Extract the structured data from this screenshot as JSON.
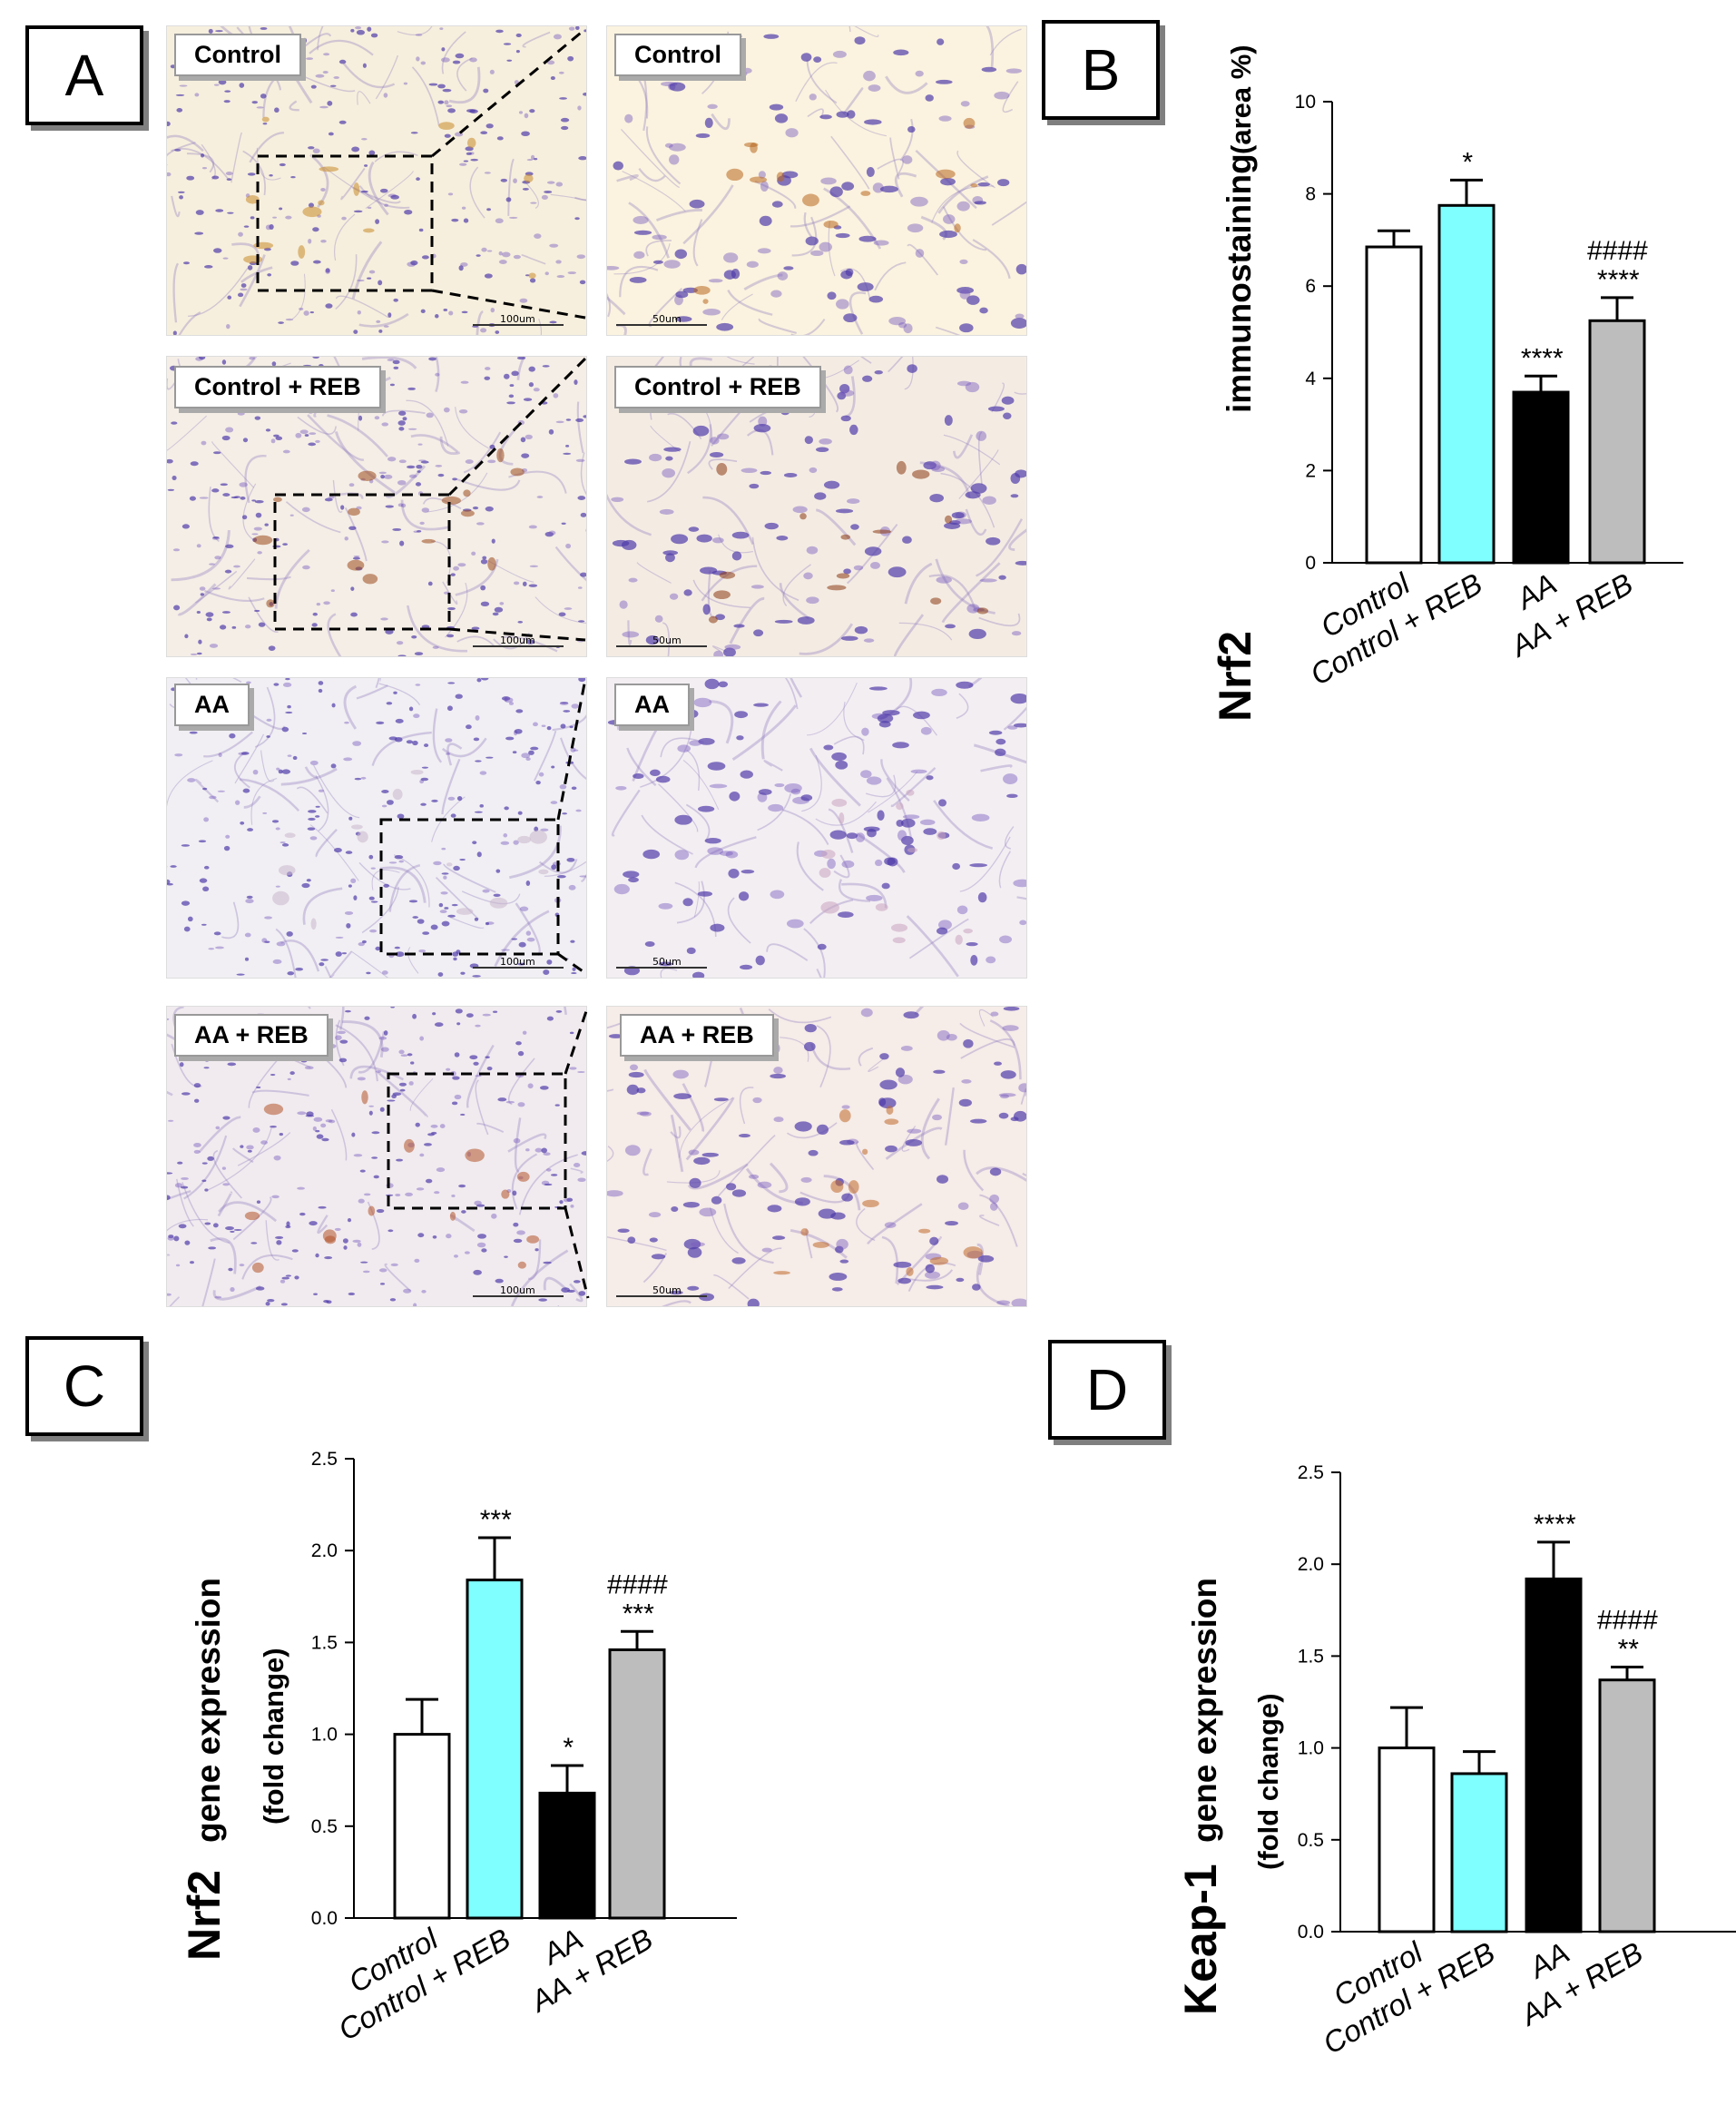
{
  "panels": {
    "a": "A",
    "b": "B",
    "c": "C",
    "d": "D"
  },
  "micrographs": [
    {
      "label": "Control",
      "scale": "100um",
      "tone": "#f6efdd",
      "stain": "#c98a2a"
    },
    {
      "label": "Control",
      "scale": "50um",
      "tone": "#fbf3df",
      "stain": "#b8661d"
    },
    {
      "label": "Control + REB",
      "scale": "100um",
      "tone": "#f4eee6",
      "stain": "#9c4a1c"
    },
    {
      "label": "Control + REB",
      "scale": "50um",
      "tone": "#f4ece3",
      "stain": "#8a3a14"
    },
    {
      "label": "AA",
      "scale": "100um",
      "tone": "#f1eff3",
      "stain": "#c8b6cc"
    },
    {
      "label": "AA",
      "scale": "50um",
      "tone": "#f3eef2",
      "stain": "#c8a4c0"
    },
    {
      "label": "AA + REB",
      "scale": "100um",
      "tone": "#f1ebef",
      "stain": "#b2532a"
    },
    {
      "label": "AA + REB",
      "scale": "50um",
      "tone": "#f6ece8",
      "stain": "#c06a2a"
    }
  ],
  "chart_data": [
    {
      "id": "B",
      "type": "bar",
      "categories": [
        "Control",
        "Control + REB",
        "AA",
        "AA + REB"
      ],
      "values": [
        6.85,
        7.75,
        3.7,
        5.25
      ],
      "errors": [
        0.35,
        0.55,
        0.35,
        0.5
      ],
      "annotations": [
        [],
        [
          "*"
        ],
        [
          "****"
        ],
        [
          "####",
          "****"
        ]
      ],
      "colors": [
        "#ffffff",
        "#7fffff",
        "#000000",
        "#bdbdbd"
      ],
      "ylabel_bold": "Nrf2",
      "ylabel_rest": "immunostaining",
      "ylabel_unit": "(area %)",
      "ylim": [
        0,
        10
      ],
      "yticks": [
        "0",
        "2",
        "4",
        "6",
        "8",
        "10"
      ],
      "ytick_values": [
        0,
        2,
        4,
        6,
        8,
        10
      ]
    },
    {
      "id": "C",
      "type": "bar",
      "categories": [
        "Control",
        "Control + REB",
        "AA",
        "AA + REB"
      ],
      "values": [
        1.0,
        1.84,
        0.68,
        1.46
      ],
      "errors": [
        0.19,
        0.23,
        0.15,
        0.1
      ],
      "annotations": [
        [],
        [
          "***"
        ],
        [
          "*"
        ],
        [
          "####",
          "***"
        ]
      ],
      "colors": [
        "#ffffff",
        "#7fffff",
        "#000000",
        "#bdbdbd"
      ],
      "ylabel_bold": "Nrf2",
      "ylabel_rest": "gene expression",
      "ylabel_unit": "(fold change)",
      "ylim": [
        0,
        2.5
      ],
      "yticks": [
        "0.0",
        "0.5",
        "1.0",
        "1.5",
        "2.0",
        "2.5"
      ],
      "ytick_values": [
        0,
        0.5,
        1.0,
        1.5,
        2.0,
        2.5
      ]
    },
    {
      "id": "D",
      "type": "bar",
      "categories": [
        "Control",
        "Control + REB",
        "AA",
        "AA + REB"
      ],
      "values": [
        1.0,
        0.86,
        1.92,
        1.37
      ],
      "errors": [
        0.22,
        0.12,
        0.2,
        0.07
      ],
      "annotations": [
        [],
        [],
        [
          "****"
        ],
        [
          "####",
          "**"
        ]
      ],
      "colors": [
        "#ffffff",
        "#7fffff",
        "#000000",
        "#bdbdbd"
      ],
      "ylabel_bold": "Keap-1",
      "ylabel_rest": "gene expression",
      "ylabel_unit": "(fold change)",
      "ylim": [
        0,
        2.5
      ],
      "yticks": [
        "0.0",
        "0.5",
        "1.0",
        "1.5",
        "2.0",
        "2.5"
      ],
      "ytick_values": [
        0,
        0.5,
        1.0,
        1.5,
        2.0,
        2.5
      ]
    }
  ]
}
